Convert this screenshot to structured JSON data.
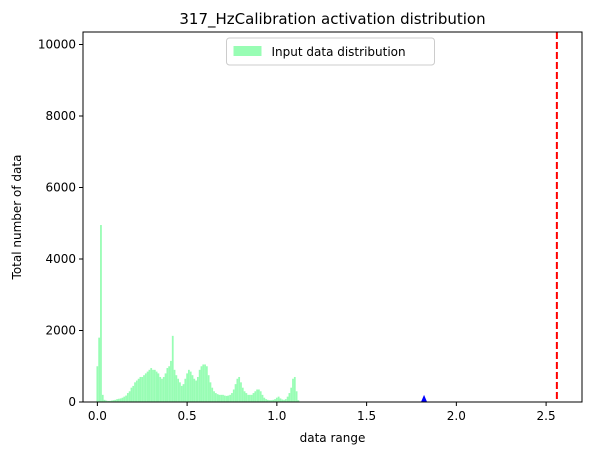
{
  "chart_data": {
    "type": "bar",
    "title": "317_HzCalibration activation distribution",
    "xlabel": "data range",
    "ylabel": "Total number of data",
    "xlim": [
      -0.08,
      2.7
    ],
    "ylim": [
      0,
      10350
    ],
    "xticks": [
      0.0,
      0.5,
      1.0,
      1.5,
      2.0,
      2.5
    ],
    "xtick_labels": [
      "0.0",
      "0.5",
      "1.0",
      "1.5",
      "2.0",
      "2.5"
    ],
    "yticks": [
      0,
      2000,
      4000,
      6000,
      8000,
      10000
    ],
    "ytick_labels": [
      "0",
      "2000",
      "4000",
      "6000",
      "8000",
      "10000"
    ],
    "grid": false,
    "legend_placement": "upper center",
    "series": [
      {
        "name": "Input data distribution",
        "color": "#98fdb4",
        "x": [
          0.0,
          0.01,
          0.02,
          0.03,
          0.04,
          0.05,
          0.06,
          0.07,
          0.08,
          0.09,
          0.1,
          0.11,
          0.12,
          0.13,
          0.14,
          0.15,
          0.16,
          0.17,
          0.18,
          0.19,
          0.2,
          0.21,
          0.22,
          0.23,
          0.24,
          0.25,
          0.26,
          0.27,
          0.28,
          0.29,
          0.3,
          0.31,
          0.32,
          0.33,
          0.34,
          0.35,
          0.36,
          0.37,
          0.38,
          0.39,
          0.4,
          0.41,
          0.42,
          0.43,
          0.44,
          0.45,
          0.46,
          0.47,
          0.48,
          0.49,
          0.5,
          0.51,
          0.52,
          0.53,
          0.54,
          0.55,
          0.56,
          0.57,
          0.58,
          0.59,
          0.6,
          0.61,
          0.62,
          0.63,
          0.64,
          0.65,
          0.66,
          0.67,
          0.68,
          0.69,
          0.7,
          0.71,
          0.72,
          0.73,
          0.74,
          0.75,
          0.76,
          0.77,
          0.78,
          0.79,
          0.8,
          0.81,
          0.82,
          0.83,
          0.84,
          0.85,
          0.86,
          0.87,
          0.88,
          0.89,
          0.9,
          0.91,
          0.92,
          0.93,
          0.94,
          0.95,
          0.96,
          0.97,
          0.98,
          0.99,
          1.0,
          1.01,
          1.02,
          1.03,
          1.04,
          1.05,
          1.06,
          1.07,
          1.08,
          1.09,
          1.1,
          1.11,
          1.12
        ],
        "values": [
          1000,
          1800,
          4950,
          200,
          60,
          40,
          30,
          30,
          40,
          50,
          60,
          80,
          90,
          100,
          120,
          150,
          180,
          250,
          300,
          400,
          450,
          550,
          600,
          650,
          700,
          700,
          750,
          800,
          850,
          900,
          950,
          900,
          900,
          850,
          800,
          700,
          650,
          700,
          800,
          950,
          1000,
          1150,
          1850,
          900,
          750,
          650,
          550,
          450,
          500,
          650,
          800,
          900,
          850,
          750,
          650,
          600,
          700,
          900,
          1000,
          1050,
          1050,
          1000,
          750,
          550,
          400,
          300,
          250,
          220,
          200,
          200,
          200,
          180,
          170,
          180,
          200,
          250,
          350,
          500,
          650,
          700,
          550,
          400,
          300,
          250,
          200,
          200,
          200,
          250,
          300,
          350,
          350,
          300,
          200,
          120,
          80,
          60,
          50,
          50,
          60,
          80,
          120,
          150,
          100,
          70,
          60,
          80,
          150,
          250,
          400,
          650,
          700,
          300,
          50
        ]
      }
    ],
    "annotations": [
      {
        "type": "vertical-dashed-line",
        "x": 2.56,
        "color": "#ff0000"
      },
      {
        "type": "marker",
        "x": 1.82,
        "y": 60,
        "shape": "triangle",
        "color": "#0000ff"
      }
    ]
  }
}
